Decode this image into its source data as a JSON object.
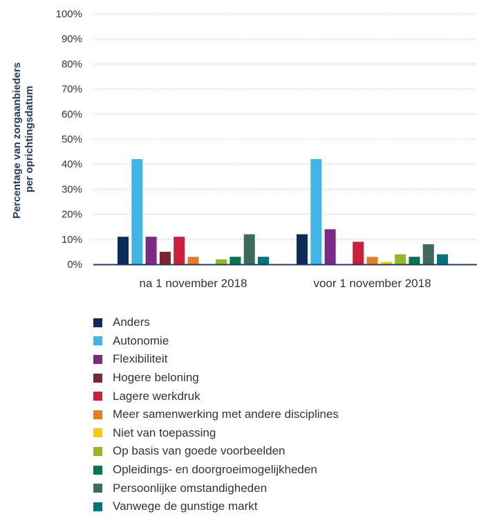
{
  "chart_data": {
    "type": "bar",
    "ylabel": "Percentage van zorgaanbieders per oprichtingsdatum",
    "ylabel_lines": [
      "Percentage van zorgaanbieders",
      "per oprichtingsdatum"
    ],
    "ylim": [
      0,
      100
    ],
    "yticks": [
      "0%",
      "10%",
      "20%",
      "30%",
      "40%",
      "50%",
      "60%",
      "70%",
      "80%",
      "90%",
      "100%"
    ],
    "grid": true,
    "legend_position": "bottom",
    "categories": [
      "na 1 november 2018",
      "voor 1 november 2018"
    ],
    "series": [
      {
        "name": "Anders",
        "color": "#0c2d5a",
        "values": [
          11,
          12
        ]
      },
      {
        "name": "Autonomie",
        "color": "#41b6e6",
        "values": [
          42,
          42
        ]
      },
      {
        "name": "Flexibiliteit",
        "color": "#7b2a85",
        "values": [
          11,
          14
        ]
      },
      {
        "name": "Hogere beloning",
        "color": "#7d2531",
        "values": [
          5,
          0
        ]
      },
      {
        "name": "Lagere werkdruk",
        "color": "#cc1f3b",
        "values": [
          11,
          9
        ]
      },
      {
        "name": "Meer samenwerking met andere disciplines",
        "color": "#ea7d23",
        "values": [
          3,
          3
        ]
      },
      {
        "name": "Niet van toepassing",
        "color": "#f5cc00",
        "values": [
          0,
          1
        ]
      },
      {
        "name": "Op basis van goede voorbeelden",
        "color": "#95b72a",
        "values": [
          2,
          4
        ]
      },
      {
        "name": "Opleidings- en doorgroeimogelijkheden",
        "color": "#00774d",
        "values": [
          3,
          3
        ]
      },
      {
        "name": "Persoonlijke omstandigheden",
        "color": "#3e6a5c",
        "values": [
          12,
          8
        ]
      },
      {
        "name": "Vanwege de gunstige markt",
        "color": "#00747f",
        "values": [
          3,
          4
        ]
      }
    ]
  }
}
